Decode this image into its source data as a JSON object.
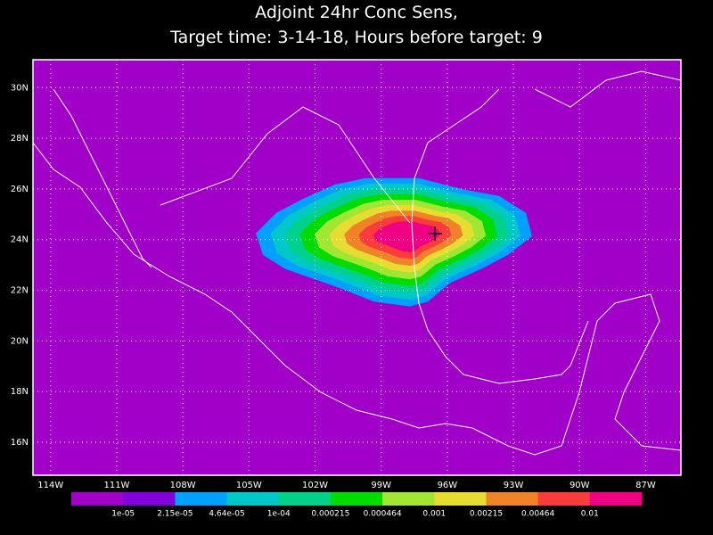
{
  "title": [
    "Adjoint 24hr Conc Sens,",
    "Target time: 3-14-18, Hours before target: 9"
  ],
  "map": {
    "xlim": [
      -114.8,
      -85.4
    ],
    "ylim": [
      14.7,
      31.1
    ],
    "lon_ticks": [
      {
        "value": -114,
        "label": "114W"
      },
      {
        "value": -111,
        "label": "111W"
      },
      {
        "value": -108,
        "label": "108W"
      },
      {
        "value": -105,
        "label": "105W"
      },
      {
        "value": -102,
        "label": "102W"
      },
      {
        "value": -99,
        "label": "99W"
      },
      {
        "value": -96,
        "label": "96W"
      },
      {
        "value": -93,
        "label": "93W"
      },
      {
        "value": -90,
        "label": "90W"
      },
      {
        "value": -87,
        "label": "87W"
      }
    ],
    "lat_ticks": [
      {
        "value": 16,
        "label": "16N"
      },
      {
        "value": 18,
        "label": "18N"
      },
      {
        "value": 20,
        "label": "20N"
      },
      {
        "value": 22,
        "label": "22N"
      },
      {
        "value": 24,
        "label": "24N"
      },
      {
        "value": 26,
        "label": "26N"
      },
      {
        "value": 28,
        "label": "28N"
      },
      {
        "value": 30,
        "label": "30N"
      }
    ]
  },
  "colorbar": {
    "colors": [
      "#a000c8",
      "#8200dc",
      "#00a0ff",
      "#00c8c8",
      "#00d28c",
      "#00dc00",
      "#a0e632",
      "#e6dc32",
      "#f08228",
      "#fa3c3c",
      "#f00082"
    ],
    "labels": [
      "1e-05",
      "2.15e-05",
      "4.64e-05",
      "1e-04",
      "0.000215",
      "0.000464",
      "0.001",
      "0.00215",
      "0.00464",
      "0.01"
    ]
  }
}
